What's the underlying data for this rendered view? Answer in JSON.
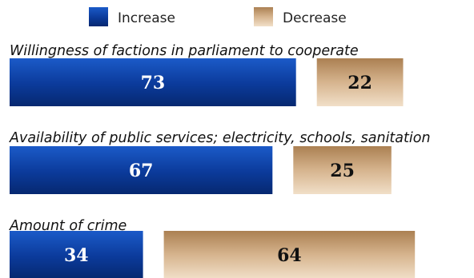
{
  "chart_data": {
    "type": "bar",
    "orientation": "horizontal",
    "stacked": false,
    "legend": {
      "placement": "top-center"
    },
    "grid": false,
    "series": [
      {
        "name": "Increase",
        "color": "#0b3a9a",
        "values": [
          73,
          67,
          34
        ]
      },
      {
        "name": "Decrease",
        "color": "#c8a27a",
        "values": [
          22,
          25,
          64
        ]
      }
    ],
    "categories": [
      "Willingness of factions in parliament to cooperate",
      "Availability of public services; electricity, schools, sanitation",
      "Amount of crime"
    ],
    "xlim": [
      0,
      100
    ],
    "value_label_colors": {
      "Increase": "#ffffff",
      "Decrease": "#111111"
    }
  }
}
